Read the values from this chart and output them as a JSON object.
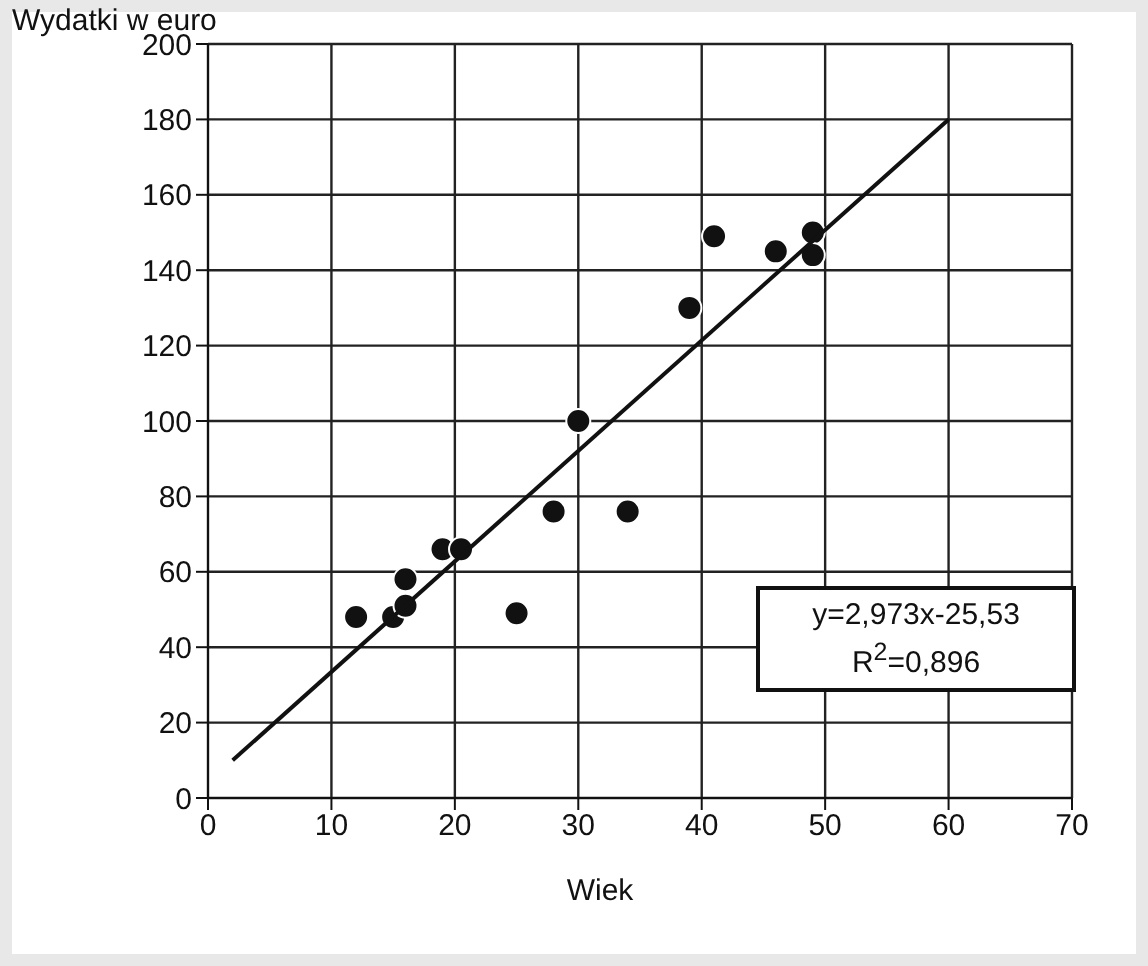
{
  "chart_data": {
    "type": "scatter",
    "ylabel": "Wydatki w euro",
    "xlabel": "Wiek",
    "series": [
      {
        "color": "#111111",
        "x": [
          12,
          15,
          16,
          16,
          19,
          20.5,
          25,
          28,
          30,
          34,
          39,
          41,
          46,
          49,
          49
        ],
        "values": [
          48,
          48,
          51,
          58,
          66,
          66,
          49,
          76,
          100,
          76,
          130,
          149,
          145,
          150,
          144
        ]
      },
      {
        "type": "line",
        "marker": "none",
        "color": "#111111",
        "x": [
          2,
          60
        ],
        "values": [
          10,
          180
        ]
      }
    ],
    "xlim": [
      0,
      70
    ],
    "xticks": [
      0,
      10,
      20,
      30,
      40,
      50,
      60,
      70
    ],
    "ylim": [
      0,
      200
    ],
    "yticks": [
      0,
      20,
      40,
      60,
      80,
      100,
      120,
      140,
      160,
      180,
      200
    ],
    "grid": true,
    "marker": "circle",
    "annotations": [
      "y=2,973x-25,53",
      "R$^{2}$=0,896"
    ]
  }
}
